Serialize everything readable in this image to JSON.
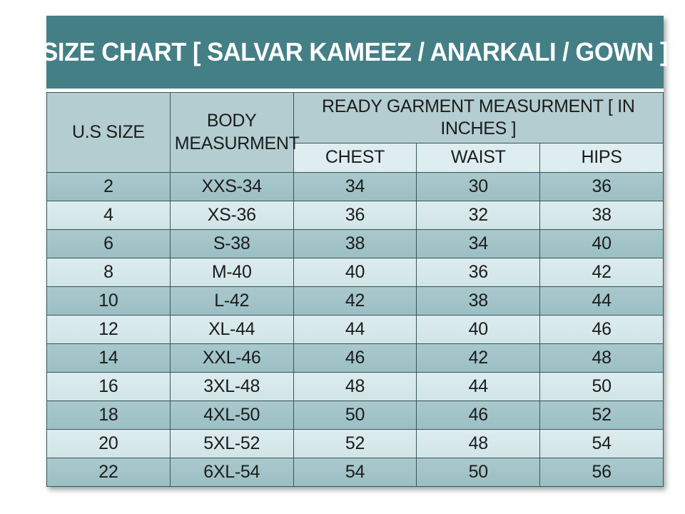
{
  "title": "SIZE CHART [ SALVAR KAMEEZ / ANARKALI / GOWN ]",
  "table": {
    "header": {
      "us_size": "U.S SIZE",
      "body_measurement": "BODY MEASURMENT",
      "ready_garment": "READY GARMENT MEASURMENT [ IN INCHES ]",
      "sub_columns": [
        "CHEST",
        "WAIST",
        "HIPS"
      ]
    },
    "rows": [
      {
        "us_size": "2",
        "body": "XXS-34",
        "chest": "34",
        "waist": "30",
        "hips": "36"
      },
      {
        "us_size": "4",
        "body": "XS-36",
        "chest": "36",
        "waist": "32",
        "hips": "38"
      },
      {
        "us_size": "6",
        "body": "S-38",
        "chest": "38",
        "waist": "34",
        "hips": "40"
      },
      {
        "us_size": "8",
        "body": "M-40",
        "chest": "40",
        "waist": "36",
        "hips": "42"
      },
      {
        "us_size": "10",
        "body": "L-42",
        "chest": "42",
        "waist": "38",
        "hips": "44"
      },
      {
        "us_size": "12",
        "body": "XL-44",
        "chest": "44",
        "waist": "40",
        "hips": "46"
      },
      {
        "us_size": "14",
        "body": "XXL-46",
        "chest": "46",
        "waist": "42",
        "hips": "48"
      },
      {
        "us_size": "16",
        "body": "3XL-48",
        "chest": "48",
        "waist": "44",
        "hips": "50"
      },
      {
        "us_size": "18",
        "body": "4XL-50",
        "chest": "50",
        "waist": "46",
        "hips": "52"
      },
      {
        "us_size": "20",
        "body": "5XL-52",
        "chest": "52",
        "waist": "48",
        "hips": "54"
      },
      {
        "us_size": "22",
        "body": "6XL-54",
        "chest": "54",
        "waist": "50",
        "hips": "56"
      }
    ]
  },
  "colors": {
    "title_bg": "#447F86",
    "header_bg": "#B3CDD1",
    "subheader_bg": "#DEEDEF",
    "row_dark_top": "#A9C8CC",
    "row_dark_bottom": "#9BBFC4",
    "row_light_top": "#DDECEE",
    "row_light_bottom": "#D0E4E6",
    "border": "#3A565A",
    "text_dark": "#1C1C1C",
    "title_text": "#FFFFFF",
    "page_bg": "#FFFFFF"
  }
}
